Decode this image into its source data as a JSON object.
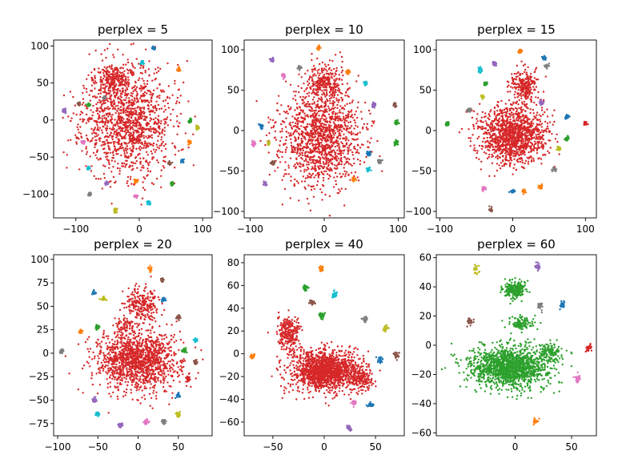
{
  "figure": {
    "background": "#ffffff"
  },
  "chart_data": [
    {
      "type": "scatter",
      "title": "perplex = 5",
      "xlim": [
        -135,
        115
      ],
      "ylim": [
        -132,
        108
      ],
      "xticks": [
        -100,
        0,
        100
      ],
      "yticks": [
        -100,
        -50,
        0,
        50,
        100
      ],
      "tick_labels_x": [
        "−100",
        "0",
        "100"
      ],
      "tick_labels_y": [
        "−100",
        "−50",
        "0",
        "50",
        "100"
      ],
      "seed": 11,
      "blobs": [
        {
          "color": "#d62728",
          "x": -20,
          "y": 0,
          "rx": 70,
          "ry": 75,
          "n": 1400
        },
        {
          "color": "#d62728",
          "x": -40,
          "y": 55,
          "rx": 25,
          "ry": 20,
          "n": 200
        }
      ],
      "clusters": [
        {
          "color": "#1f77b4",
          "x": 22,
          "y": 97
        },
        {
          "color": "#17becf",
          "x": 5,
          "y": 78
        },
        {
          "color": "#ff7f0e",
          "x": 62,
          "y": 68
        },
        {
          "color": "#7f7f7f",
          "x": -55,
          "y": 30
        },
        {
          "color": "#2ca02c",
          "x": -80,
          "y": 20
        },
        {
          "color": "#8c564b",
          "x": -95,
          "y": 22
        },
        {
          "color": "#9467bd",
          "x": -118,
          "y": 13
        },
        {
          "color": "#2ca02c",
          "x": 80,
          "y": -2
        },
        {
          "color": "#bcbd22",
          "x": 92,
          "y": -10
        },
        {
          "color": "#ff7f0e",
          "x": 80,
          "y": -30
        },
        {
          "color": "#e377c2",
          "x": -88,
          "y": -30
        },
        {
          "color": "#17becf",
          "x": -80,
          "y": -65
        },
        {
          "color": "#1f77b4",
          "x": 68,
          "y": -55
        },
        {
          "color": "#8c564b",
          "x": 48,
          "y": -58
        },
        {
          "color": "#9467bd",
          "x": -52,
          "y": -85
        },
        {
          "color": "#ff7f0e",
          "x": -5,
          "y": -82
        },
        {
          "color": "#2ca02c",
          "x": 52,
          "y": -85
        },
        {
          "color": "#17becf",
          "x": 15,
          "y": -112
        },
        {
          "color": "#e377c2",
          "x": -5,
          "y": -103
        },
        {
          "color": "#bcbd22",
          "x": -38,
          "y": -122
        },
        {
          "color": "#7f7f7f",
          "x": -78,
          "y": -100
        }
      ]
    },
    {
      "type": "scatter",
      "title": "perplex = 10",
      "xlim": [
        -108,
        108
      ],
      "ylim": [
        -108,
        112
      ],
      "xticks": [
        -100,
        0,
        100
      ],
      "yticks": [
        -100,
        -50,
        0,
        50,
        100
      ],
      "tick_labels_x": [
        "−100",
        "0",
        "100"
      ],
      "tick_labels_y": [
        "−100",
        "−50",
        "0",
        "50",
        "100"
      ],
      "seed": 23,
      "blobs": [
        {
          "color": "#d62728",
          "x": -5,
          "y": -10,
          "rx": 55,
          "ry": 60,
          "n": 1300
        },
        {
          "color": "#d62728",
          "x": 0,
          "y": 58,
          "rx": 25,
          "ry": 22,
          "n": 280
        }
      ],
      "clusters": [
        {
          "color": "#ff7f0e",
          "x": -8,
          "y": 102
        },
        {
          "color": "#9467bd",
          "x": -70,
          "y": 88
        },
        {
          "color": "#7f7f7f",
          "x": -33,
          "y": 78
        },
        {
          "color": "#ff7f0e",
          "x": 32,
          "y": 72
        },
        {
          "color": "#e377c2",
          "x": -55,
          "y": 68
        },
        {
          "color": "#17becf",
          "x": 56,
          "y": 58
        },
        {
          "color": "#1f77b4",
          "x": -85,
          "y": 5
        },
        {
          "color": "#9467bd",
          "x": 67,
          "y": 32
        },
        {
          "color": "#8c564b",
          "x": 95,
          "y": 32
        },
        {
          "color": "#2ca02c",
          "x": 98,
          "y": 10
        },
        {
          "color": "#2ca02c",
          "x": 97,
          "y": -15
        },
        {
          "color": "#e377c2",
          "x": -95,
          "y": -16
        },
        {
          "color": "#1f77b4",
          "x": 60,
          "y": -28
        },
        {
          "color": "#7f7f7f",
          "x": 75,
          "y": -38
        },
        {
          "color": "#8c564b",
          "x": -70,
          "y": -40
        },
        {
          "color": "#bcbd22",
          "x": -75,
          "y": -16
        },
        {
          "color": "#ff7f0e",
          "x": 40,
          "y": -60
        },
        {
          "color": "#9467bd",
          "x": -80,
          "y": -65
        },
        {
          "color": "#17becf",
          "x": 60,
          "y": -48
        }
      ]
    },
    {
      "type": "scatter",
      "title": "perplex = 15",
      "xlim": [
        -105,
        115
      ],
      "ylim": [
        -108,
        112
      ],
      "xticks": [
        -100,
        0,
        100
      ],
      "yticks": [
        -100,
        -50,
        0,
        50,
        100
      ],
      "tick_labels_x": [
        "−100",
        "0",
        "100"
      ],
      "tick_labels_y": [
        "−100",
        "−50",
        "0",
        "50",
        "100"
      ],
      "seed": 37,
      "blobs": [
        {
          "color": "#d62728",
          "x": 0,
          "y": -5,
          "rx": 45,
          "ry": 35,
          "n": 1300
        },
        {
          "color": "#d62728",
          "x": 15,
          "y": 55,
          "rx": 18,
          "ry": 20,
          "n": 260
        }
      ],
      "clusters": [
        {
          "color": "#ff7f0e",
          "x": 10,
          "y": 98
        },
        {
          "color": "#9467bd",
          "x": -25,
          "y": 82
        },
        {
          "color": "#17becf",
          "x": -45,
          "y": 75
        },
        {
          "color": "#1f77b4",
          "x": 43,
          "y": 90
        },
        {
          "color": "#7f7f7f",
          "x": 47,
          "y": 80
        },
        {
          "color": "#2ca02c",
          "x": -38,
          "y": 58
        },
        {
          "color": "#bcbd22",
          "x": -42,
          "y": 42
        },
        {
          "color": "#7f7f7f",
          "x": -60,
          "y": 25
        },
        {
          "color": "#9467bd",
          "x": 40,
          "y": 34
        },
        {
          "color": "#2ca02c",
          "x": -90,
          "y": 8
        },
        {
          "color": "#1f77b4",
          "x": 75,
          "y": 17
        },
        {
          "color": "#2ca02c",
          "x": 75,
          "y": -10
        },
        {
          "color": "#d62728",
          "x": 100,
          "y": 9
        },
        {
          "color": "#bcbd22",
          "x": 63,
          "y": -22
        },
        {
          "color": "#7f7f7f",
          "x": 57,
          "y": -48
        },
        {
          "color": "#ff7f0e",
          "x": 15,
          "y": -75
        },
        {
          "color": "#1f77b4",
          "x": 0,
          "y": -75
        },
        {
          "color": "#e377c2",
          "x": -40,
          "y": -72
        },
        {
          "color": "#ff7f0e",
          "x": 38,
          "y": -70
        },
        {
          "color": "#8c564b",
          "x": -30,
          "y": -98
        }
      ]
    },
    {
      "type": "scatter",
      "title": "perplex = 20",
      "xlim": [
        -105,
        92
      ],
      "ylim": [
        -88,
        105
      ],
      "xticks": [
        -100,
        -50,
        0,
        50
      ],
      "yticks": [
        -75,
        -50,
        -25,
        0,
        25,
        50,
        75,
        100
      ],
      "tick_labels_x": [
        "−100",
        "−50",
        "0",
        "50"
      ],
      "tick_labels_y": [
        "−75",
        "−50",
        "−25",
        "0",
        "25",
        "50",
        "75",
        "100"
      ],
      "seed": 53,
      "blobs": [
        {
          "color": "#d62728",
          "x": 0,
          "y": -8,
          "rx": 52,
          "ry": 32,
          "n": 1400
        },
        {
          "color": "#d62728",
          "x": 5,
          "y": 52,
          "rx": 20,
          "ry": 18,
          "n": 240
        },
        {
          "color": "#d62728",
          "x": -15,
          "y": 30,
          "rx": 12,
          "ry": 8,
          "n": 60
        }
      ],
      "clusters": [
        {
          "color": "#ff7f0e",
          "x": 15,
          "y": 90
        },
        {
          "color": "#8c564b",
          "x": 30,
          "y": 78
        },
        {
          "color": "#1f77b4",
          "x": -55,
          "y": 65
        },
        {
          "color": "#1f77b4",
          "x": 32,
          "y": 57
        },
        {
          "color": "#bcbd22",
          "x": -43,
          "y": 58
        },
        {
          "color": "#8c564b",
          "x": 50,
          "y": 38
        },
        {
          "color": "#2ca02c",
          "x": -50,
          "y": 28
        },
        {
          "color": "#ff7f0e",
          "x": -72,
          "y": 23
        },
        {
          "color": "#17becf",
          "x": 72,
          "y": 14
        },
        {
          "color": "#7f7f7f",
          "x": -95,
          "y": 2
        },
        {
          "color": "#2ca02c",
          "x": 57,
          "y": 3
        },
        {
          "color": "#8c564b",
          "x": 72,
          "y": -10
        },
        {
          "color": "#d62728",
          "x": 62,
          "y": -27
        },
        {
          "color": "#1f77b4",
          "x": 50,
          "y": -44
        },
        {
          "color": "#9467bd",
          "x": -55,
          "y": -50
        },
        {
          "color": "#17becf",
          "x": -50,
          "y": -65
        },
        {
          "color": "#bcbd22",
          "x": 50,
          "y": -66
        },
        {
          "color": "#9467bd",
          "x": -22,
          "y": -77
        },
        {
          "color": "#e377c2",
          "x": 10,
          "y": -73
        },
        {
          "color": "#7f7f7f",
          "x": 32,
          "y": -73
        }
      ]
    },
    {
      "type": "scatter",
      "title": "perplex = 40",
      "xlim": [
        -78,
        78
      ],
      "ylim": [
        -72,
        87
      ],
      "xticks": [
        -50,
        0,
        50
      ],
      "yticks": [
        -60,
        -40,
        -20,
        0,
        20,
        40,
        60,
        80
      ],
      "tick_labels_x": [
        "−50",
        "0",
        "50"
      ],
      "tick_labels_y": [
        "−60",
        "−40",
        "−20",
        "0",
        "20",
        "40",
        "60",
        "80"
      ],
      "seed": 71,
      "blobs": [
        {
          "color": "#d62728",
          "x": 0,
          "y": -15,
          "rx": 32,
          "ry": 18,
          "n": 1500
        },
        {
          "color": "#d62728",
          "x": -35,
          "y": 18,
          "rx": 10,
          "ry": 14,
          "n": 260
        },
        {
          "color": "#d62728",
          "x": 35,
          "y": -20,
          "rx": 12,
          "ry": 12,
          "n": 200
        }
      ],
      "clusters": [
        {
          "color": "#ff7f0e",
          "x": -3,
          "y": 75
        },
        {
          "color": "#2ca02c",
          "x": -18,
          "y": 58
        },
        {
          "color": "#17becf",
          "x": 10,
          "y": 52
        },
        {
          "color": "#8c564b",
          "x": -12,
          "y": 45
        },
        {
          "color": "#2ca02c",
          "x": -2,
          "y": 33
        },
        {
          "color": "#7f7f7f",
          "x": 40,
          "y": 30
        },
        {
          "color": "#bcbd22",
          "x": 60,
          "y": 22
        },
        {
          "color": "#ff7f0e",
          "x": -70,
          "y": -2
        },
        {
          "color": "#1f77b4",
          "x": 55,
          "y": -5
        },
        {
          "color": "#8c564b",
          "x": 70,
          "y": -2
        },
        {
          "color": "#e377c2",
          "x": 30,
          "y": -43
        },
        {
          "color": "#1f77b4",
          "x": 45,
          "y": -45
        },
        {
          "color": "#9467bd",
          "x": 25,
          "y": -65
        }
      ]
    },
    {
      "type": "scatter",
      "title": "perplex = 60",
      "xlim": [
        -70,
        72
      ],
      "ylim": [
        -62,
        62
      ],
      "xticks": [
        0,
        50
      ],
      "yticks": [
        -60,
        -40,
        -20,
        0,
        20,
        40,
        60
      ],
      "tick_labels_x": [
        "0",
        "50"
      ],
      "tick_labels_y": [
        "−60",
        "−40",
        "−20",
        "0",
        "20",
        "40",
        "60"
      ],
      "seed": 97,
      "blobs": [
        {
          "color": "#2ca02c",
          "x": -5,
          "y": -15,
          "rx": 36,
          "ry": 14,
          "n": 1500
        },
        {
          "color": "#2ca02c",
          "x": 0,
          "y": 38,
          "rx": 10,
          "ry": 6,
          "n": 240
        },
        {
          "color": "#2ca02c",
          "x": 5,
          "y": 15,
          "rx": 10,
          "ry": 5,
          "n": 120
        },
        {
          "color": "#2ca02c",
          "x": 30,
          "y": -5,
          "rx": 10,
          "ry": 6,
          "n": 120
        }
      ],
      "clusters": [
        {
          "color": "#bcbd22",
          "x": -35,
          "y": 52
        },
        {
          "color": "#9467bd",
          "x": 20,
          "y": 54
        },
        {
          "color": "#7f7f7f",
          "x": 22,
          "y": 27
        },
        {
          "color": "#1f77b4",
          "x": 42,
          "y": 28
        },
        {
          "color": "#8c564b",
          "x": -40,
          "y": 16
        },
        {
          "color": "#d62728",
          "x": 65,
          "y": -2
        },
        {
          "color": "#e377c2",
          "x": 55,
          "y": -22
        },
        {
          "color": "#ff7f0e",
          "x": 18,
          "y": -52
        }
      ]
    }
  ]
}
